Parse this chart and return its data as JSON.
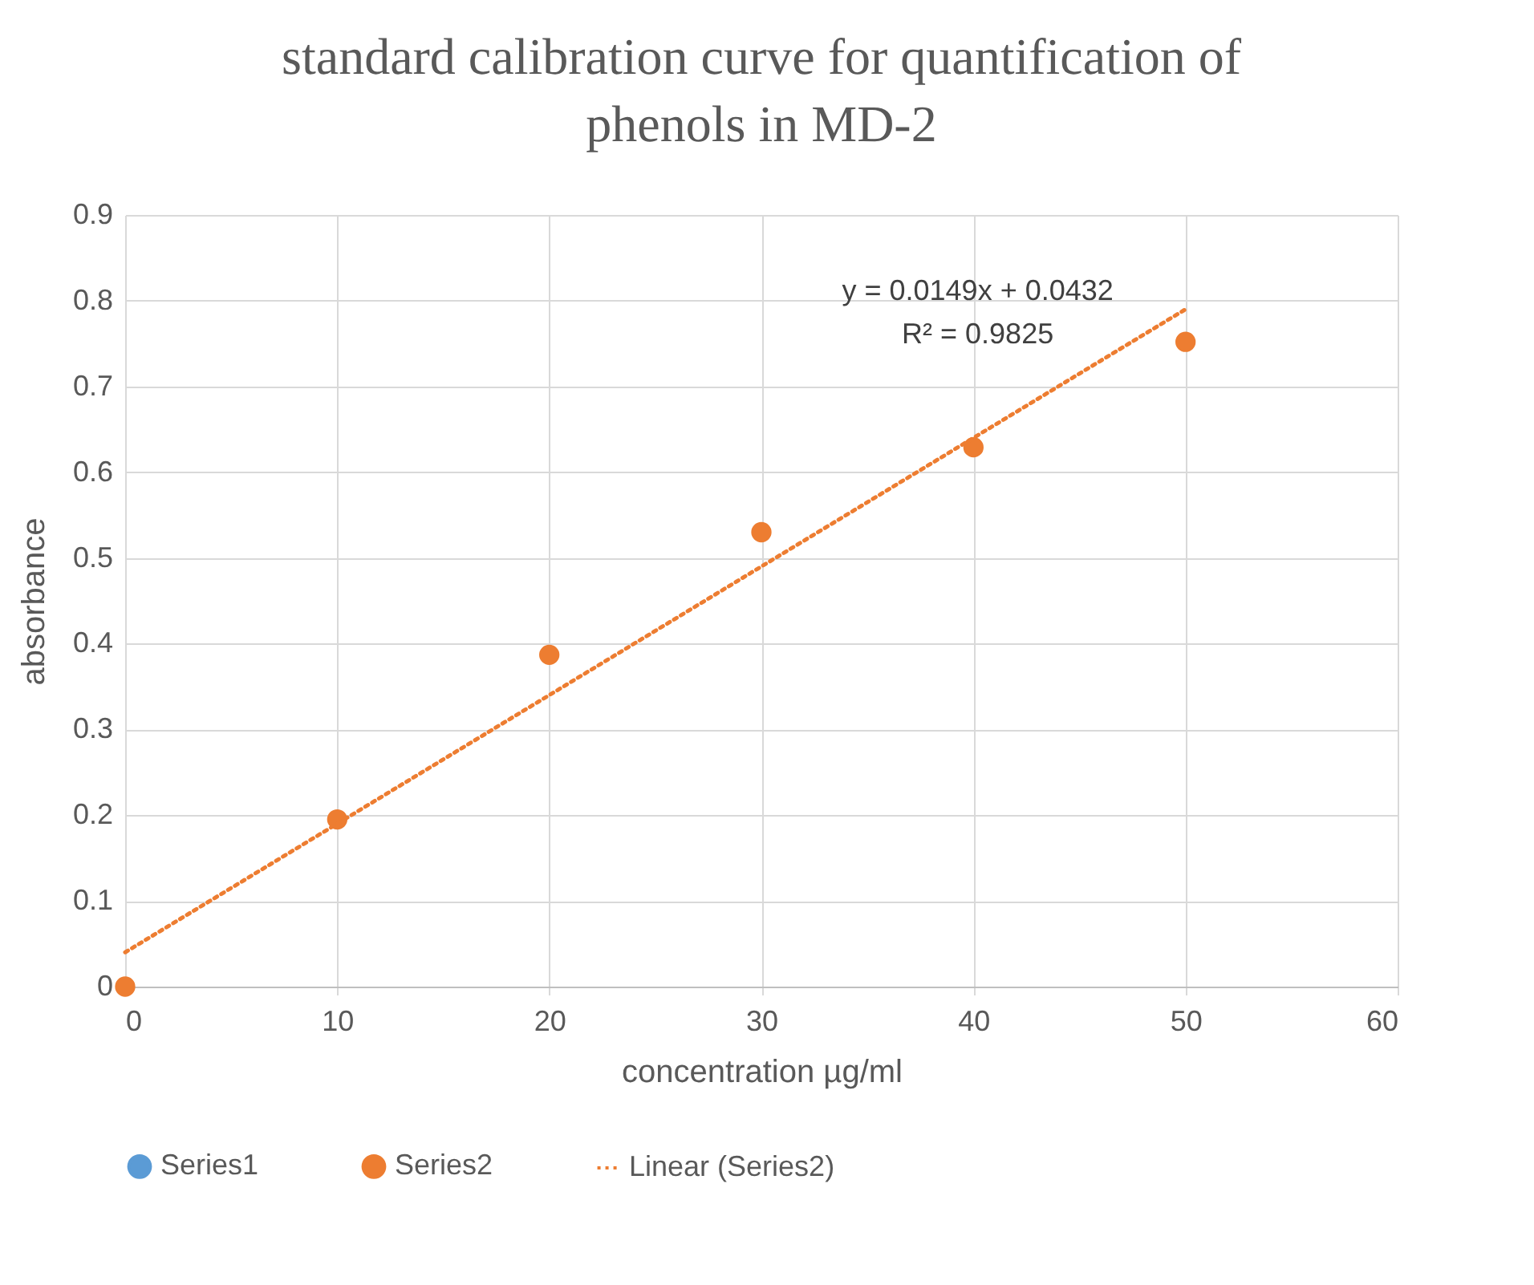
{
  "chart_data": {
    "type": "scatter",
    "title": "standard calibration curve for quantification of phenols in MD-2",
    "xlabel": "concentration µg/ml",
    "ylabel": "absorbance",
    "x": [
      0,
      10,
      20,
      30,
      40,
      50
    ],
    "series": [
      {
        "name": "Series1",
        "color": "#5b9bd5",
        "values": [
          null,
          null,
          null,
          null,
          null,
          null
        ]
      },
      {
        "name": "Series2",
        "color": "#ed7d31",
        "values": [
          0,
          0.195,
          0.387,
          0.53,
          0.629,
          0.752
        ]
      },
      {
        "name": "Linear (Series2)",
        "type": "line",
        "color": "#ed7d31",
        "line_style": "dotted",
        "marker": "none",
        "x": [
          0,
          50
        ],
        "values": [
          0.04,
          0.79
        ]
      }
    ],
    "annotations": [
      "y = 0.0149x + 0.0432",
      "R² = 0.9825"
    ],
    "xlim": [
      0,
      60
    ],
    "xticks": [
      0,
      10,
      20,
      30,
      40,
      50,
      60
    ],
    "ylim": [
      0,
      0.9
    ],
    "yticks": [
      0,
      0.1,
      0.2,
      0.3,
      0.4,
      0.5,
      0.6,
      0.7,
      0.8,
      0.9
    ],
    "grid": true,
    "legend": "bottom",
    "marker": "circle"
  }
}
